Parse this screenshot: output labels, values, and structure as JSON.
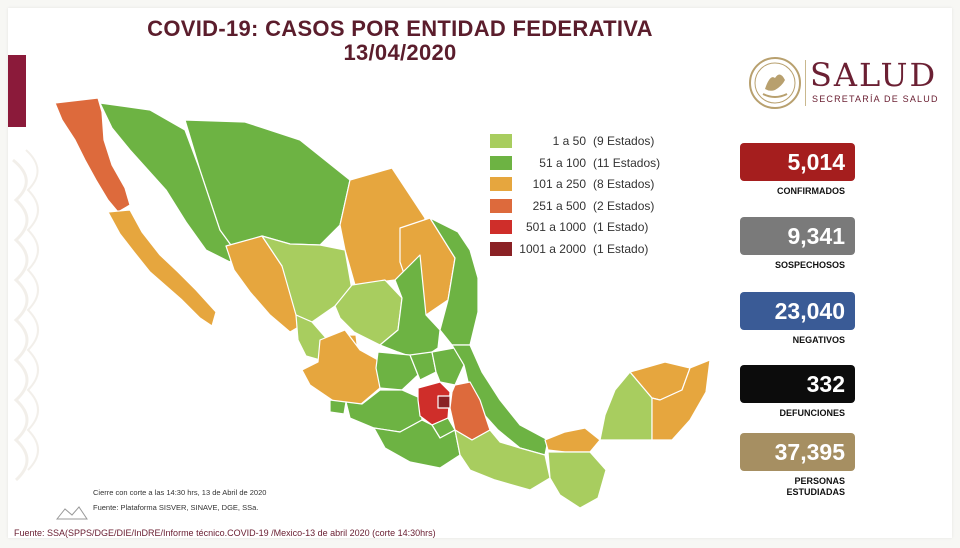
{
  "title_line1": "COVID-19: CASOS POR ENTIDAD FEDERATIVA",
  "title_line2": "13/04/2020",
  "logo": {
    "name": "SALUD",
    "subtitle": "SECRETARÍA DE SALUD",
    "seal_icon": "mexican-eagle-seal-icon"
  },
  "legend": [
    {
      "range": "1 a 50",
      "count": "(9 Estados)",
      "color": "#a8cd5f"
    },
    {
      "range": "51 a 100",
      "count": "(11 Estados)",
      "color": "#6db343"
    },
    {
      "range": "101 a 250",
      "count": "(8 Estados)",
      "color": "#e6a63e"
    },
    {
      "range": "251 a 500",
      "count": "(2 Estados)",
      "color": "#dd6a3c"
    },
    {
      "range": "501 a 1000",
      "count": "(1 Estado)",
      "color": "#cf2e2a"
    },
    {
      "range": "1001 a 2000",
      "count": "(1 Estado)",
      "color": "#8a2125"
    }
  ],
  "stats": [
    {
      "value": "5,014",
      "label": "CONFIRMADOS",
      "color": "#a51e1e"
    },
    {
      "value": "9,341",
      "label": "SOSPECHOSOS",
      "color": "#7a7a7a"
    },
    {
      "value": "23,040",
      "label": "NEGATIVOS",
      "color": "#3a5b96"
    },
    {
      "value": "332",
      "label": "DEFUNCIONES",
      "color": "#0c0c0c"
    },
    {
      "value": "37,395",
      "label": "PERSONAS ESTUDIADAS",
      "color": "#a68f62"
    }
  ],
  "footnote_cutoff": "Cierre con corte a las 14:30 hrs, 13 de Abril de 2020",
  "footnote_platform": "Fuente: Plataforma SISVER, SINAVE, DGE, SSa.",
  "source_line": "Fuente: SSA(SPPS/DGE/DIE/InDRE/Informe técnico.COVID-19 /Mexico-13 de abril 2020 (corte 14:30hrs)"
}
